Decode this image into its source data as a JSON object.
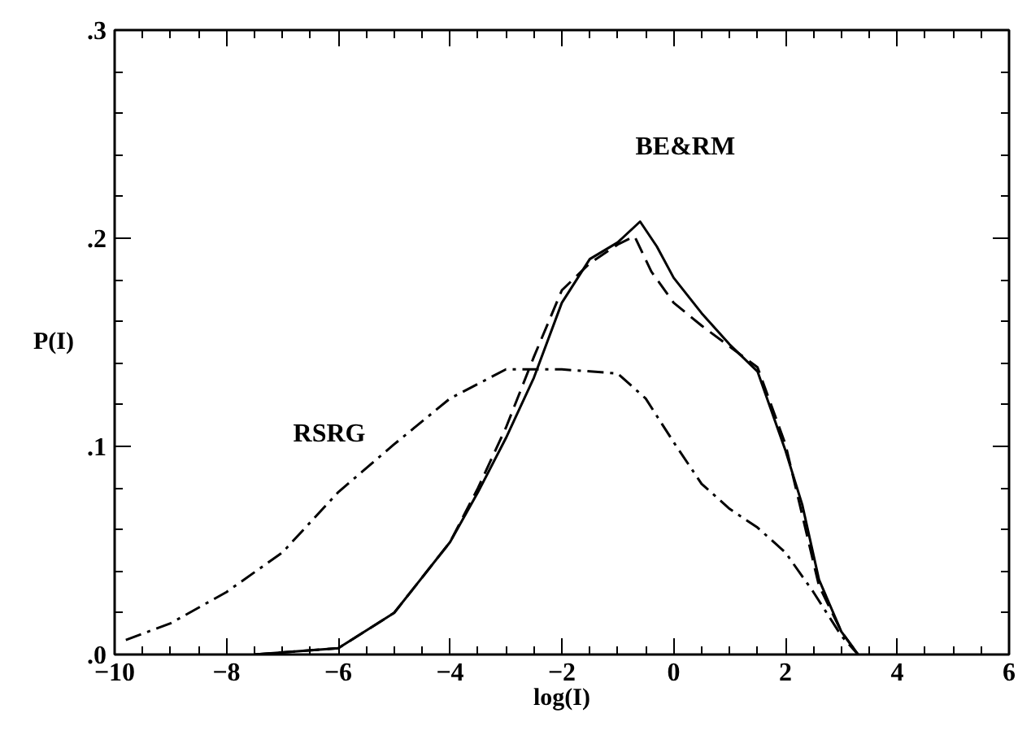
{
  "chart_data": {
    "type": "line",
    "xlabel": "log(I)",
    "ylabel": "P(I)",
    "xlim": [
      -10,
      6
    ],
    "xticks": [
      -10,
      -8,
      -6,
      -4,
      -2,
      0,
      2,
      4,
      6
    ],
    "ylim": [
      0,
      0.3
    ],
    "yticks": [
      {
        "value": 0,
        "label": ".0"
      },
      {
        "value": 0.1,
        "label": ".1"
      },
      {
        "value": 0.2,
        "label": ".2"
      },
      {
        "value": 0.3,
        "label": ".3"
      }
    ],
    "grid": false,
    "annotations": [
      "BE&RM",
      "RSRG"
    ],
    "series": [
      {
        "color": "#000000",
        "line_style": "solid",
        "x": [
          -7.5,
          -6,
          -5,
          -4,
          -3.5,
          -3,
          -2.5,
          -2,
          -1.5,
          -1,
          -0.6,
          -0.3,
          0,
          0.5,
          1,
          1.5,
          2,
          2.3,
          2.6,
          3,
          3.3
        ],
        "values": [
          0,
          0.003,
          0.02,
          0.054,
          0.078,
          0.104,
          0.133,
          0.169,
          0.19,
          0.198,
          0.208,
          0.196,
          0.181,
          0.164,
          0.149,
          0.136,
          0.098,
          0.072,
          0.036,
          0.011,
          0
        ]
      },
      {
        "color": "#000000",
        "line_style": "dashed",
        "x": [
          -7.5,
          -6,
          -5,
          -4,
          -3.5,
          -3,
          -2.5,
          -2,
          -1.5,
          -1,
          -0.7,
          -0.4,
          0,
          0.5,
          1,
          1.5,
          2,
          2.6,
          3,
          3.3
        ],
        "values": [
          0,
          0.003,
          0.02,
          0.054,
          0.08,
          0.109,
          0.143,
          0.175,
          0.188,
          0.197,
          0.201,
          0.184,
          0.169,
          0.158,
          0.148,
          0.138,
          0.101,
          0.033,
          0.011,
          0
        ]
      },
      {
        "color": "#000000",
        "line_style": "dashdot",
        "x": [
          -9.8,
          -9,
          -8,
          -7,
          -6,
          -5,
          -4,
          -3,
          -2,
          -1,
          -0.5,
          0,
          0.5,
          1,
          1.5,
          2,
          2.5,
          3,
          3.3
        ],
        "values": [
          0.007,
          0.015,
          0.03,
          0.049,
          0.078,
          0.101,
          0.123,
          0.137,
          0.137,
          0.135,
          0.123,
          0.102,
          0.082,
          0.07,
          0.061,
          0.049,
          0.03,
          0.009,
          0
        ]
      }
    ]
  }
}
